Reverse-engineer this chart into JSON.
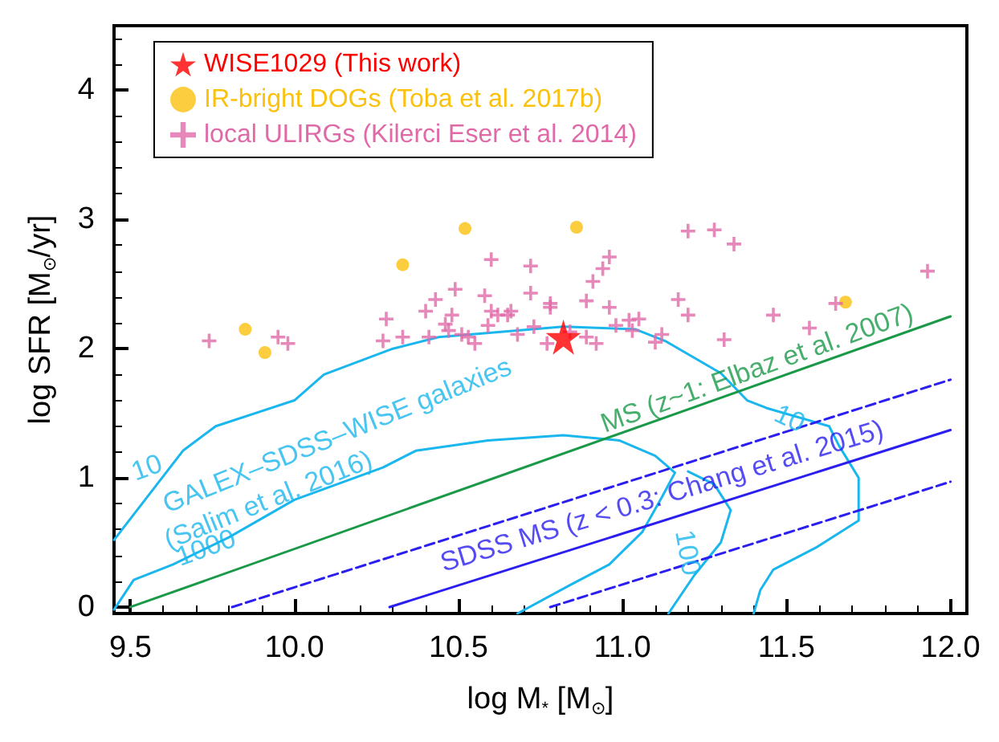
{
  "chart_data": {
    "type": "scatter",
    "xlabel": "log M$_{*}$ [M$_{⊙}$]",
    "ylabel": "log SFR [M$_{⊙}$/yr]",
    "xlim": [
      9.45,
      12.05
    ],
    "ylim": [
      -0.05,
      4.5
    ],
    "xticks": [
      9.5,
      {
        "value": 10,
        "label": "10.0"
      },
      10.5,
      {
        "value": 11,
        "label": "11.0"
      },
      11.5,
      {
        "value": 12,
        "label": "12.0"
      }
    ],
    "yticks": [
      0,
      1,
      2,
      3,
      4
    ],
    "grid": false,
    "legend": "top left",
    "series": [
      {
        "name": "WISE1029 (This work)",
        "color": "#ff0000",
        "marker": "star",
        "x": [
          10.82
        ],
        "values": [
          2.09
        ]
      },
      {
        "name": "IR-bright DOGs (Toba et al. 2017b)",
        "color": "#fbc10f",
        "marker": "circle",
        "x": [
          10.52,
          10.86,
          10.33,
          9.85,
          9.91,
          11.68
        ],
        "values": [
          2.93,
          2.94,
          2.65,
          2.15,
          1.97,
          2.36
        ]
      },
      {
        "name": "local ULIRGs (Kilerci Eser et al. 2014)",
        "color": "#e06aa8",
        "marker": "cross",
        "x": [
          9.74,
          9.95,
          9.98,
          10.28,
          10.27,
          10.33,
          10.4,
          10.43,
          10.41,
          10.49,
          10.48,
          10.46,
          10.47,
          10.51,
          10.53,
          10.55,
          10.58,
          10.6,
          10.6,
          10.59,
          10.62,
          10.65,
          10.66,
          10.68,
          10.72,
          10.72,
          10.73,
          10.78,
          10.78,
          10.77,
          10.84,
          10.89,
          10.89,
          10.91,
          10.94,
          10.96,
          10.92,
          10.96,
          10.98,
          11.02,
          11.03,
          11.05,
          11.1,
          11.12,
          11.17,
          11.2,
          11.2,
          11.28,
          11.34,
          11.31,
          11.46,
          11.57,
          11.65,
          11.93
        ],
        "values": [
          2.06,
          2.09,
          2.04,
          2.23,
          2.06,
          2.09,
          2.29,
          2.38,
          2.09,
          2.46,
          2.26,
          2.19,
          2.14,
          2.11,
          2.09,
          2.04,
          2.41,
          2.69,
          2.29,
          2.18,
          2.26,
          2.26,
          2.29,
          2.11,
          2.64,
          2.43,
          2.17,
          2.35,
          2.32,
          2.04,
          2.13,
          2.09,
          2.37,
          2.52,
          2.62,
          2.71,
          2.04,
          2.32,
          2.18,
          2.22,
          2.14,
          2.23,
          2.05,
          2.11,
          2.38,
          2.26,
          2.91,
          2.92,
          2.81,
          2.07,
          2.26,
          2.16,
          2.35,
          2.6
        ]
      },
      {
        "type": "line",
        "color": "#1ab6ee",
        "marker": "none",
        "line_style": "solid",
        "x": [
          9.45,
          9.66,
          9.76,
          10.0,
          10.09,
          10.3,
          10.44,
          10.82,
          11.04,
          11.13,
          11.3,
          11.38,
          11.44,
          11.63,
          11.66,
          11.72,
          11.72,
          11.59,
          11.46,
          11.42,
          11.4
        ],
        "values": [
          0.52,
          1.21,
          1.4,
          1.6,
          1.8,
          2.0,
          2.09,
          2.17,
          2.15,
          2.06,
          1.81,
          1.6,
          1.54,
          1.4,
          1.25,
          1.0,
          0.67,
          0.46,
          0.29,
          0.13,
          -0.05
        ]
      },
      {
        "type": "line",
        "color": "#1ab6ee",
        "marker": "none",
        "line_style": "solid",
        "x": [
          9.45,
          9.51,
          9.63,
          9.8,
          10.0,
          10.27,
          10.37,
          10.59,
          10.82,
          10.99,
          11.1,
          11.16,
          11.12,
          11.06,
          10.96,
          10.84,
          10.68
        ],
        "values": [
          -0.02,
          0.21,
          0.33,
          0.54,
          0.83,
          1.08,
          1.21,
          1.29,
          1.33,
          1.29,
          1.17,
          1.04,
          0.85,
          0.58,
          0.33,
          0.17,
          -0.05
        ]
      },
      {
        "type": "line",
        "color": "#1ab6ee",
        "marker": "none",
        "line_style": "solid",
        "x": [
          11.14,
          11.22,
          11.3,
          11.33,
          11.28,
          11.2
        ],
        "values": [
          -0.05,
          0.25,
          0.5,
          0.75,
          0.95,
          1.05
        ]
      },
      {
        "type": "line",
        "color": "#1a9a48",
        "marker": "none",
        "line_style": "solid",
        "x": [
          9.5,
          12.0
        ],
        "values": [
          0.0,
          2.25
        ]
      },
      {
        "type": "line",
        "color": "#2a1ef0",
        "marker": "none",
        "line_style": "solid",
        "x": [
          10.29,
          12.0
        ],
        "values": [
          0.0,
          1.37
        ]
      },
      {
        "type": "line",
        "color": "#2a1ef0",
        "marker": "none",
        "line_style": "dashed",
        "x": [
          9.81,
          12.0
        ],
        "values": [
          0.0,
          1.76
        ]
      },
      {
        "type": "line",
        "color": "#2a1ef0",
        "marker": "none",
        "line_style": "dashed",
        "x": [
          10.78,
          12.0
        ],
        "values": [
          0.0,
          0.97
        ]
      }
    ],
    "annotations": [
      "GALEX–SDSS–WISE galaxies",
      "(Salim et al. 2016)",
      "10",
      "1000",
      "10",
      "100",
      "MS (z~1: Elbaz et al. 2007)",
      "SDSS MS (z < 0.3: Chang et al. 2015)"
    ]
  }
}
